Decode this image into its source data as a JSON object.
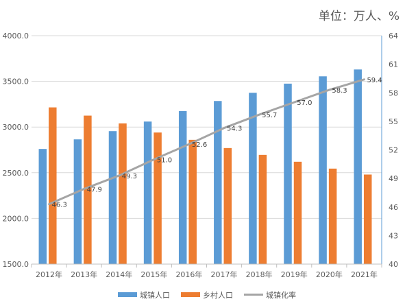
{
  "unit_label": "单位：万人、%",
  "colors": {
    "urban": "#5b9bd5",
    "rural": "#ed7d31",
    "rate": "#a5a5a5",
    "grid": "#d9d9d9",
    "right_axis": "#5b9bd5"
  },
  "chart_data": {
    "type": "bar",
    "categories": [
      "2012年",
      "2013年",
      "2014年",
      "2015年",
      "2016年",
      "2017年",
      "2018年",
      "2019年",
      "2020年",
      "2021年"
    ],
    "series": [
      {
        "name": "城镇人口",
        "type": "bar",
        "axis": "left",
        "values": [
          2760,
          2865,
          2955,
          3060,
          3175,
          3285,
          3375,
          3475,
          3555,
          3630
        ]
      },
      {
        "name": "乡村人口",
        "type": "bar",
        "axis": "left",
        "values": [
          3215,
          3125,
          3040,
          2940,
          2860,
          2770,
          2695,
          2620,
          2545,
          2480
        ]
      },
      {
        "name": "城镇化率",
        "type": "line",
        "axis": "right",
        "values": [
          46.3,
          47.9,
          49.3,
          51.0,
          52.6,
          54.3,
          55.7,
          57.0,
          58.3,
          59.4
        ],
        "labels": [
          "46.3",
          "47.9",
          "49.3",
          "51.0",
          "52.6",
          "54.3",
          "55.7",
          "57.0",
          "58.3",
          "59.4"
        ]
      }
    ],
    "y_left": {
      "range": [
        1500,
        4000
      ],
      "ticks": [
        "1500.0",
        "2000.0",
        "2500.0",
        "3000.0",
        "3500.0",
        "4000.0"
      ],
      "tick_values": [
        1500,
        2000,
        2500,
        3000,
        3500,
        4000
      ]
    },
    "y_right": {
      "range": [
        40,
        64
      ],
      "ticks": [
        "40",
        "43",
        "46",
        "49",
        "52",
        "55",
        "58",
        "61",
        "64"
      ],
      "tick_values": [
        40,
        43,
        46,
        49,
        52,
        55,
        58,
        61,
        64
      ]
    },
    "grid": true,
    "legend_position": "bottom"
  }
}
